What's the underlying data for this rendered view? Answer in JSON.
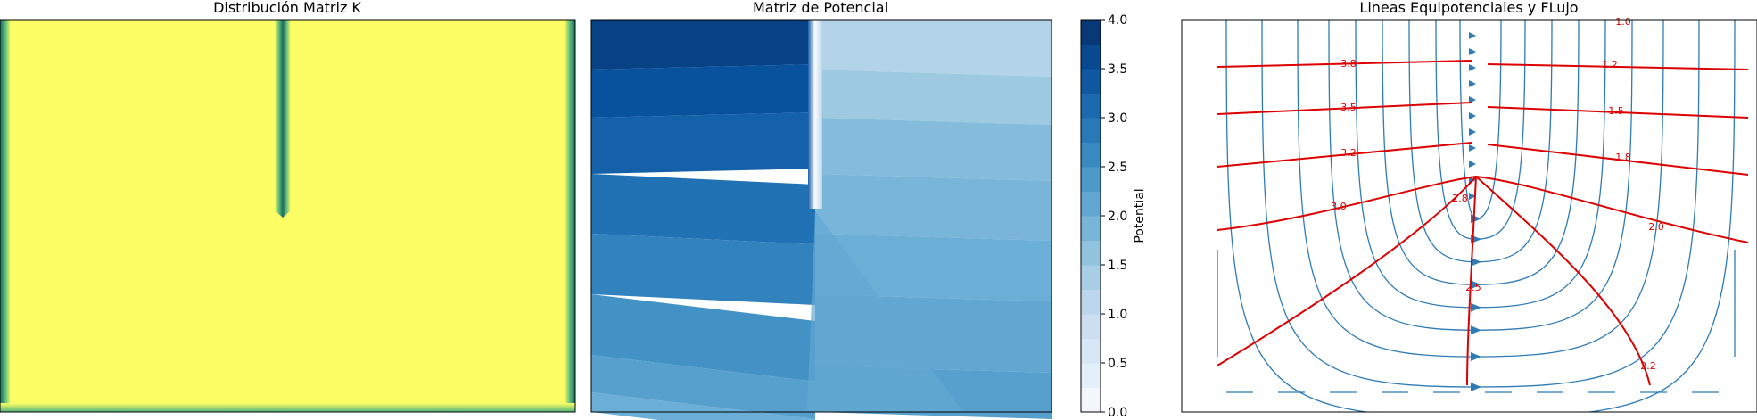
{
  "figure": {
    "background": "#ffffff"
  },
  "chart_data": [
    {
      "type": "heatmap",
      "title": "Distribución Matriz K",
      "xlabel": "",
      "ylabel": "",
      "colormap": "viridis",
      "colors": {
        "high": "#FDFE66",
        "edge_mid": "#4FB37E",
        "edge_low": "#206B5B"
      },
      "description_values": {
        "field_value": "high",
        "low_zones": [
          "left border",
          "right border",
          "vertical barrier from top to about half height, slightly left of center"
        ]
      }
    },
    {
      "type": "heatmap",
      "title": "Matriz de Potencial",
      "colormap": "Blues",
      "colorbar": {
        "label": "Potential",
        "ticks": [
          "0.0",
          "0.5",
          "1.0",
          "1.5",
          "2.0",
          "2.5",
          "3.0",
          "3.5",
          "4.0"
        ],
        "min": 0,
        "max": 4,
        "levels": 16
      },
      "levels_left": [
        3.75,
        3.5,
        3.25,
        3.0,
        2.75,
        2.5,
        2.25,
        2.0
      ],
      "levels_right": [
        1.25,
        1.5,
        1.75,
        1.875,
        2.0,
        2.125,
        2.25
      ]
    },
    {
      "type": "contour",
      "title": "Lineas Equipotenciales y FLujo",
      "line_color": "#DD0000",
      "stream_color": "#2F7BB5",
      "contour_labels": [
        {
          "text": "3.8"
        },
        {
          "text": "1.2"
        },
        {
          "text": "3.5"
        },
        {
          "text": "1.5"
        },
        {
          "text": "3.2"
        },
        {
          "text": "1.8"
        },
        {
          "text": "2.8"
        },
        {
          "text": "3.0"
        },
        {
          "text": "2.0"
        },
        {
          "text": "2.5"
        },
        {
          "text": "2.2"
        },
        {
          "text": "1.0"
        }
      ]
    }
  ]
}
